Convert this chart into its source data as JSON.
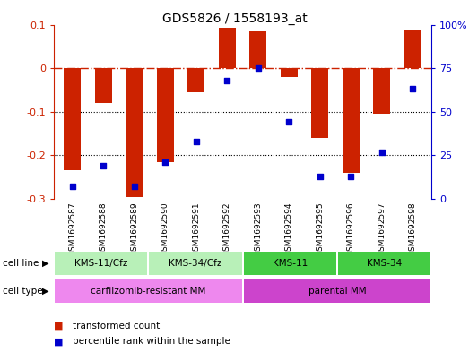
{
  "title": "GDS5826 / 1558193_at",
  "samples": [
    "GSM1692587",
    "GSM1692588",
    "GSM1692589",
    "GSM1692590",
    "GSM1692591",
    "GSM1692592",
    "GSM1692593",
    "GSM1692594",
    "GSM1692595",
    "GSM1692596",
    "GSM1692597",
    "GSM1692598"
  ],
  "transformed_count": [
    -0.235,
    -0.08,
    -0.295,
    -0.215,
    -0.055,
    0.093,
    0.085,
    -0.02,
    -0.16,
    -0.24,
    -0.105,
    0.088
  ],
  "percentile_rank": [
    7,
    19,
    7,
    21,
    33,
    68,
    75,
    44,
    13,
    13,
    27,
    63
  ],
  "cell_line_groups": [
    {
      "label": "KMS-11/Cfz",
      "start": 0,
      "end": 2,
      "color": "#b8f0b8"
    },
    {
      "label": "KMS-34/Cfz",
      "start": 3,
      "end": 5,
      "color": "#b8f0b8"
    },
    {
      "label": "KMS-11",
      "start": 6,
      "end": 8,
      "color": "#44cc44"
    },
    {
      "label": "KMS-34",
      "start": 9,
      "end": 11,
      "color": "#44cc44"
    }
  ],
  "cell_type_groups": [
    {
      "label": "carfilzomib-resistant MM",
      "start": 0,
      "end": 5,
      "color": "#ee88ee"
    },
    {
      "label": "parental MM",
      "start": 6,
      "end": 11,
      "color": "#cc44cc"
    }
  ],
  "bar_color": "#cc2200",
  "dot_color": "#0000cc",
  "ylim_left": [
    -0.3,
    0.1
  ],
  "ylim_right": [
    0,
    100
  ],
  "yticks_left": [
    -0.3,
    -0.2,
    -0.1,
    0.0,
    0.1
  ],
  "yticks_right": [
    0,
    25,
    50,
    75,
    100
  ],
  "ytick_labels_right": [
    "0",
    "25",
    "50",
    "75",
    "100%"
  ],
  "hline_y": 0,
  "dotted_hlines": [
    -0.1,
    -0.2
  ],
  "bar_width": 0.55,
  "sample_bg_color": "#cccccc",
  "sample_divider_color": "#ffffff"
}
